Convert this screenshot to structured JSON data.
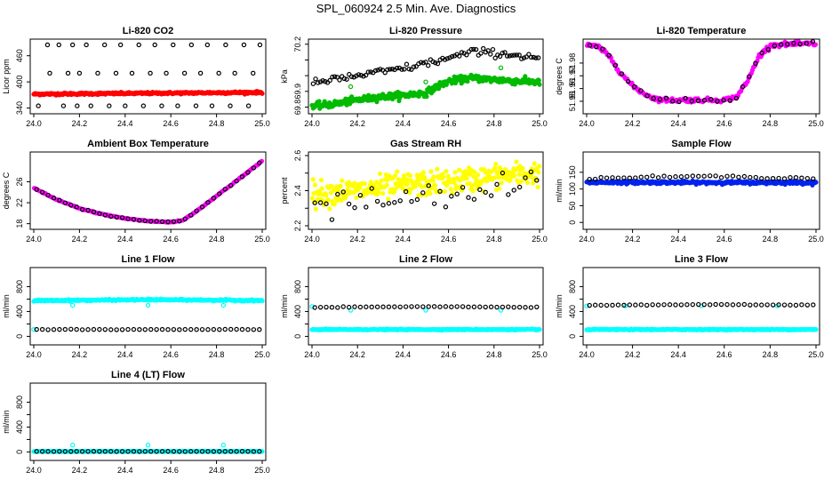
{
  "page": {
    "title": "SPL_060924  2.5 Min. Ave. Diagnostics"
  },
  "chart_data": [
    {
      "id": "co2",
      "type": "scatter",
      "title": "Li-820 CO2",
      "xlabel": "",
      "ylabel": "Licor ppm",
      "xlim": [
        24.0,
        25.0
      ],
      "ylim": [
        335,
        490
      ],
      "xticks": [
        24.0,
        24.2,
        24.4,
        24.6,
        24.8,
        25.0
      ],
      "yticks": [
        340,
        400,
        460
      ],
      "ytick_labels": [
        "340",
        "400",
        "460"
      ],
      "series": [
        {
          "color": "#ff0000",
          "filled": true,
          "band": {
            "x": [
              24.0,
              25.0
            ],
            "y": [
              372,
              376
            ],
            "sd": 1.2
          }
        },
        {
          "color": "#000000",
          "filled": false,
          "points": [
            [
              24.02,
              345
            ],
            [
              24.06,
              485
            ],
            [
              24.07,
              420
            ],
            [
              24.11,
              485
            ],
            [
              24.13,
              345
            ],
            [
              24.15,
              420
            ],
            [
              24.17,
              485
            ],
            [
              24.19,
              345
            ],
            [
              24.2,
              420
            ],
            [
              24.23,
              485
            ],
            [
              24.25,
              345
            ],
            [
              24.28,
              420
            ],
            [
              24.31,
              485
            ],
            [
              24.33,
              345
            ],
            [
              24.36,
              420
            ],
            [
              24.38,
              485
            ],
            [
              24.4,
              345
            ],
            [
              24.43,
              420
            ],
            [
              24.46,
              485
            ],
            [
              24.48,
              345
            ],
            [
              24.51,
              420
            ],
            [
              24.53,
              485
            ],
            [
              24.56,
              345
            ],
            [
              24.58,
              420
            ],
            [
              24.61,
              485
            ],
            [
              24.63,
              345
            ],
            [
              24.66,
              420
            ],
            [
              24.69,
              485
            ],
            [
              24.71,
              345
            ],
            [
              24.73,
              420
            ],
            [
              24.76,
              485
            ],
            [
              24.78,
              345
            ],
            [
              24.81,
              420
            ],
            [
              24.84,
              485
            ],
            [
              24.86,
              345
            ],
            [
              24.88,
              420
            ],
            [
              24.92,
              485
            ],
            [
              24.94,
              345
            ],
            [
              24.96,
              420
            ],
            [
              24.99,
              485
            ]
          ]
        }
      ]
    },
    {
      "id": "pressure",
      "type": "scatter",
      "title": "Li-820 Pressure",
      "xlabel": "",
      "ylabel": "kPa",
      "xlim": [
        24.0,
        25.0
      ],
      "ylim": [
        69.78,
        70.21
      ],
      "xticks": [
        24.0,
        24.2,
        24.4,
        24.6,
        24.8,
        25.0
      ],
      "yticks": [
        69.8,
        69.9,
        70.0,
        70.1,
        70.2
      ],
      "ytick_labels": [
        "69.8",
        "69.9",
        "",
        "",
        "70.2"
      ],
      "series": [
        {
          "color": "#00bb00",
          "filled": true,
          "band": {
            "x": [
              24.0,
              24.1,
              24.2,
              24.3,
              24.4,
              24.5,
              24.55,
              24.6,
              24.7,
              24.8,
              24.9,
              25.0
            ],
            "y": [
              69.805,
              69.82,
              69.845,
              69.865,
              69.875,
              69.89,
              69.93,
              69.965,
              69.985,
              69.975,
              69.965,
              69.96
            ],
            "sd": 0.01
          }
        },
        {
          "color": "#00bb00",
          "filled": false,
          "points": [
            [
              24.17,
              69.93
            ],
            [
              24.5,
              69.96
            ],
            [
              24.83,
              70.05
            ]
          ]
        },
        {
          "color": "#000000",
          "filled": false,
          "trend": {
            "x": [
              24.0,
              24.2,
              24.4,
              24.6,
              24.7,
              24.8,
              25.0
            ],
            "y": [
              69.95,
              70.0,
              70.045,
              70.11,
              70.15,
              70.145,
              70.115
            ],
            "sd": 0.012,
            "n": 95
          }
        }
      ]
    },
    {
      "id": "temp",
      "type": "scatter",
      "title": "Li-820 Temperature",
      "xlabel": "",
      "ylabel": "degrees C",
      "xlim": [
        24.0,
        25.0
      ],
      "ylim": [
        51.943,
        51.996
      ],
      "xticks": [
        24.0,
        24.2,
        24.4,
        24.6,
        24.8,
        25.0
      ],
      "yticks": [
        51.95,
        51.96,
        51.97,
        51.98
      ],
      "ytick_labels": [
        "51.95",
        "51.96",
        "51.97",
        "51.98"
      ],
      "series": [
        {
          "color": "#ff00ff",
          "filled": true,
          "trend": {
            "x": [
              24.0,
              24.05,
              24.1,
              24.15,
              24.2,
              24.25,
              24.3,
              24.35,
              24.4,
              24.5,
              24.6,
              24.65,
              24.7,
              24.75,
              24.8,
              24.9,
              25.0
            ],
            "y": [
              51.994,
              51.993,
              51.985,
              51.972,
              51.962,
              51.956,
              51.952,
              51.951,
              51.951,
              51.951,
              51.951,
              51.953,
              51.965,
              51.985,
              51.994,
              51.995,
              51.995
            ],
            "sd": 0.0008,
            "n": 240
          }
        },
        {
          "color": "#000000",
          "filled": false,
          "trend": {
            "x": [
              24.0,
              24.05,
              24.1,
              24.15,
              24.2,
              24.25,
              24.3,
              24.35,
              24.4,
              24.5,
              24.6,
              24.65,
              24.7,
              24.75,
              24.8,
              24.9,
              25.0
            ],
            "y": [
              51.994,
              51.993,
              51.985,
              51.972,
              51.962,
              51.956,
              51.952,
              51.951,
              51.951,
              51.951,
              51.951,
              51.953,
              51.965,
              51.985,
              51.994,
              51.995,
              51.995
            ],
            "sd": 0.0008,
            "n": 36
          }
        }
      ]
    },
    {
      "id": "ambient",
      "type": "scatter",
      "title": "Ambient Box Temperature",
      "xlabel": "",
      "ylabel": "degrees C",
      "xlim": [
        24.0,
        25.0
      ],
      "ylim": [
        17.6,
        31.0
      ],
      "xticks": [
        24.0,
        24.2,
        24.4,
        24.6,
        24.8,
        25.0
      ],
      "yticks": [
        18,
        22,
        26
      ],
      "ytick_labels": [
        "18",
        "22",
        "26"
      ],
      "series": [
        {
          "color": "#ff00ff",
          "filled": true,
          "trend": {
            "x": [
              24.0,
              24.1,
              24.2,
              24.3,
              24.4,
              24.5,
              24.6,
              24.65,
              24.7,
              24.8,
              24.9,
              25.0
            ],
            "y": [
              24.8,
              22.6,
              20.9,
              19.8,
              19.0,
              18.5,
              18.3,
              18.6,
              20.0,
              23.3,
              26.6,
              30.0
            ],
            "sd": 0.05,
            "n": 240
          }
        },
        {
          "color": "#000000",
          "filled": false,
          "trend": {
            "x": [
              24.0,
              24.1,
              24.2,
              24.3,
              24.4,
              24.5,
              24.6,
              24.65,
              24.7,
              24.8,
              24.9,
              25.0
            ],
            "y": [
              24.8,
              22.6,
              20.9,
              19.8,
              19.0,
              18.5,
              18.3,
              18.6,
              20.0,
              23.3,
              26.6,
              30.0
            ],
            "sd": 0.05,
            "n": 40
          }
        }
      ]
    },
    {
      "id": "rh",
      "type": "scatter",
      "title": "Gas Stream RH",
      "xlabel": "",
      "ylabel": "percent",
      "xlim": [
        24.0,
        25.0
      ],
      "ylim": [
        2.2,
        2.6
      ],
      "xticks": [
        24.0,
        24.2,
        24.4,
        24.6,
        24.8,
        25.0
      ],
      "yticks": [
        2.2,
        2.3,
        2.4,
        2.5,
        2.6
      ],
      "ytick_labels": [
        "2.2",
        "",
        "2.4",
        "",
        "2.6"
      ],
      "series": [
        {
          "color": "#ffff00",
          "filled": true,
          "trend": {
            "x": [
              24.0,
              24.2,
              24.4,
              24.6,
              24.8,
              25.0
            ],
            "y": [
              2.38,
              2.4,
              2.43,
              2.45,
              2.48,
              2.5
            ],
            "sd": 0.035,
            "n": 330
          }
        },
        {
          "color": "#000000",
          "filled": false,
          "trend": {
            "x": [
              24.0,
              24.2,
              24.4,
              24.6,
              24.8,
              25.0
            ],
            "y": [
              2.31,
              2.33,
              2.35,
              2.36,
              2.4,
              2.45
            ],
            "sd": 0.04,
            "n": 40
          }
        }
      ]
    },
    {
      "id": "sample",
      "type": "scatter",
      "title": "Sample Flow",
      "xlabel": "",
      "ylabel": "ml/min",
      "xlim": [
        24.0,
        25.0
      ],
      "ylim": [
        -10,
        200
      ],
      "xticks": [
        24.0,
        24.2,
        24.4,
        24.6,
        24.8,
        25.0
      ],
      "yticks": [
        0,
        50,
        100,
        150
      ],
      "ytick_labels": [
        "0",
        "50",
        "100",
        "150"
      ],
      "series": [
        {
          "color": "#0022ee",
          "filled": true,
          "band": {
            "x": [
              24.0,
              25.0
            ],
            "y": [
              120,
              119
            ],
            "sd": 2.0
          }
        },
        {
          "color": "#000000",
          "filled": false,
          "trend": {
            "x": [
              24.0,
              24.5,
              25.0
            ],
            "y": [
              132,
              138,
              132
            ],
            "sd": 1.5,
            "n": 40
          }
        }
      ]
    },
    {
      "id": "line1",
      "type": "scatter",
      "title": "Line 1 Flow",
      "xlabel": "",
      "ylabel": "ml/min",
      "xlim": [
        24.0,
        25.0
      ],
      "ylim": [
        -80,
        1050
      ],
      "xticks": [
        24.0,
        24.2,
        24.4,
        24.6,
        24.8,
        25.0
      ],
      "yticks": [
        0,
        200,
        400,
        600,
        800
      ],
      "ytick_labels": [
        "0",
        "",
        "400",
        "",
        "800"
      ],
      "series": [
        {
          "color": "#00ffff",
          "filled": true,
          "band": {
            "x": [
              24.0,
              24.5,
              25.0
            ],
            "y": [
              575,
              590,
              578
            ],
            "sd": 6
          }
        },
        {
          "color": "#00ffff",
          "filled": false,
          "points": [
            [
              24.0,
              110
            ],
            [
              24.17,
              500
            ],
            [
              24.5,
              500
            ],
            [
              24.83,
              500
            ]
          ]
        },
        {
          "color": "#000000",
          "filled": false,
          "trend": {
            "x": [
              24.0,
              25.0
            ],
            "y": [
              110,
              110
            ],
            "sd": 2,
            "n": 40
          }
        }
      ]
    },
    {
      "id": "line2",
      "type": "scatter",
      "title": "Line 2 Flow",
      "xlabel": "",
      "ylabel": "ml/min",
      "xlim": [
        24.0,
        25.0
      ],
      "ylim": [
        -80,
        1050
      ],
      "xticks": [
        24.0,
        24.2,
        24.4,
        24.6,
        24.8,
        25.0
      ],
      "yticks": [
        0,
        200,
        400,
        600,
        800
      ],
      "ytick_labels": [
        "0",
        "",
        "400",
        "",
        "800"
      ],
      "series": [
        {
          "color": "#00ffff",
          "filled": true,
          "band": {
            "x": [
              24.0,
              25.0
            ],
            "y": [
              110,
              110
            ],
            "sd": 4
          }
        },
        {
          "color": "#00ffff",
          "filled": false,
          "points": [
            [
              24.0,
              480
            ],
            [
              24.17,
              420
            ],
            [
              24.5,
              420
            ],
            [
              24.83,
              420
            ]
          ]
        },
        {
          "color": "#000000",
          "filled": false,
          "trend": {
            "x": [
              24.0,
              24.5,
              25.0
            ],
            "y": [
              465,
              480,
              465
            ],
            "sd": 3,
            "n": 40
          }
        }
      ]
    },
    {
      "id": "line3",
      "type": "scatter",
      "title": "Line 3 Flow",
      "xlabel": "",
      "ylabel": "ml/min",
      "xlim": [
        24.0,
        25.0
      ],
      "ylim": [
        -80,
        1050
      ],
      "xticks": [
        24.0,
        24.2,
        24.4,
        24.6,
        24.8,
        25.0
      ],
      "yticks": [
        0,
        200,
        400,
        600,
        800
      ],
      "ytick_labels": [
        "0",
        "",
        "400",
        "",
        "800"
      ],
      "series": [
        {
          "color": "#00ffff",
          "filled": true,
          "band": {
            "x": [
              24.0,
              25.0
            ],
            "y": [
              110,
              110
            ],
            "sd": 4
          }
        },
        {
          "color": "#00ffff",
          "filled": false,
          "points": [
            [
              24.0,
              490
            ],
            [
              24.17,
              490
            ],
            [
              24.5,
              490
            ],
            [
              24.83,
              490
            ]
          ]
        },
        {
          "color": "#000000",
          "filled": false,
          "trend": {
            "x": [
              24.0,
              24.5,
              25.0
            ],
            "y": [
              500,
              512,
              505
            ],
            "sd": 3,
            "n": 40
          }
        }
      ]
    },
    {
      "id": "line4",
      "type": "scatter",
      "title": "Line 4 (LT) Flow",
      "xlabel": "",
      "ylabel": "ml/min",
      "xlim": [
        24.0,
        25.0
      ],
      "ylim": [
        -80,
        1050
      ],
      "xticks": [
        24.0,
        24.2,
        24.4,
        24.6,
        24.8,
        25.0
      ],
      "yticks": [
        0,
        200,
        400,
        600,
        800
      ],
      "ytick_labels": [
        "0",
        "",
        "400",
        "",
        "800"
      ],
      "series": [
        {
          "color": "#00ffff",
          "filled": true,
          "band": {
            "x": [
              24.0,
              25.0
            ],
            "y": [
              8,
              8
            ],
            "sd": 2
          }
        },
        {
          "color": "#00ffff",
          "filled": false,
          "points": [
            [
              24.17,
              110
            ],
            [
              24.5,
              110
            ],
            [
              24.83,
              110
            ]
          ]
        },
        {
          "color": "#000000",
          "filled": false,
          "trend": {
            "x": [
              24.0,
              25.0
            ],
            "y": [
              8,
              8
            ],
            "sd": 1,
            "n": 40
          }
        }
      ]
    }
  ]
}
